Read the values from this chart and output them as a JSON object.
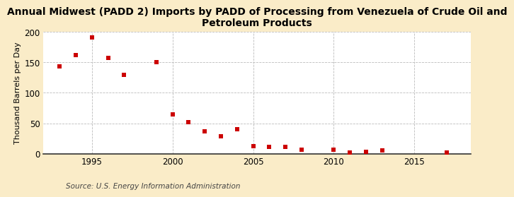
{
  "title": "Annual Midwest (PADD 2) Imports by PADD of Processing from Venezuela of Crude Oil and\nPetroleum Products",
  "ylabel": "Thousand Barrels per Day",
  "source": "Source: U.S. Energy Information Administration",
  "background_color": "#faecc8",
  "plot_background": "#ffffff",
  "marker_color": "#cc0000",
  "years": [
    1993,
    1994,
    1995,
    1996,
    1997,
    1999,
    2000,
    2001,
    2002,
    2003,
    2004,
    2005,
    2006,
    2007,
    2008,
    2010,
    2011,
    2012,
    2013,
    2017
  ],
  "values": [
    143,
    162,
    191,
    157,
    130,
    150,
    65,
    52,
    37,
    29,
    40,
    12,
    11,
    11,
    6,
    7,
    2,
    3,
    5,
    2
  ],
  "xlim": [
    1992.0,
    2018.5
  ],
  "ylim": [
    0,
    200
  ],
  "yticks": [
    0,
    50,
    100,
    150,
    200
  ],
  "xticks": [
    1995,
    2000,
    2005,
    2010,
    2015
  ],
  "grid_color": "#bbbbbb",
  "title_fontsize": 10,
  "label_fontsize": 8,
  "tick_fontsize": 8.5,
  "source_fontsize": 7.5
}
